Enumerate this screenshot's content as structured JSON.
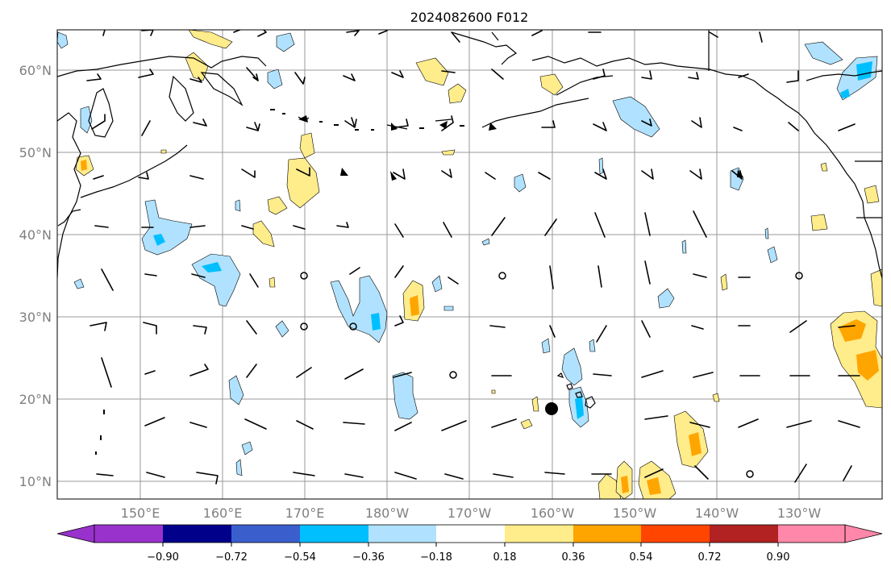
{
  "title": "2024082600 F012",
  "lat_labels": [
    "60°N",
    "50°N",
    "40°N",
    "30°N",
    "20°N",
    "10°N"
  ],
  "lon_labels": [
    "150°E",
    "160°E",
    "170°E",
    "180°W",
    "170°W",
    "160°W",
    "150°W",
    "140°W",
    "130°W"
  ],
  "colorbar": {
    "ticks": [
      "−0.90",
      "−0.72",
      "−0.54",
      "−0.36",
      "−0.18",
      "0.18",
      "0.36",
      "0.54",
      "0.72",
      "0.90"
    ],
    "colors": [
      "#9932cc",
      "#00008b",
      "#3a5fcd",
      "#00bfff",
      "#b0e2ff",
      "#ffffff",
      "#ffec8b",
      "#ffa500",
      "#ff4500",
      "#b22222",
      "#ff88aa"
    ]
  },
  "map": {
    "extent": {
      "lon_min": 140,
      "lon_max": 240,
      "lat_min": 8,
      "lat_max": 65
    },
    "tropical_storm_marker": {
      "lon": 201.5,
      "lat": 19
    }
  }
}
